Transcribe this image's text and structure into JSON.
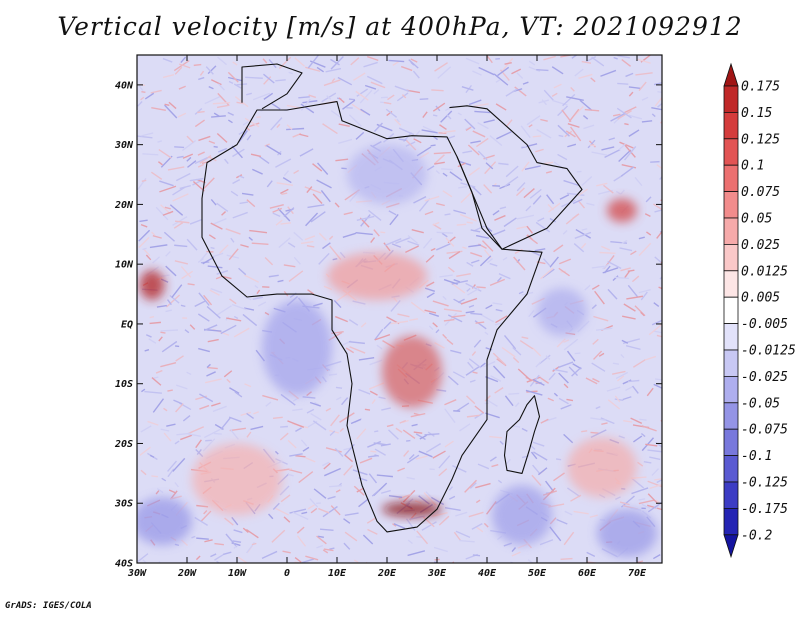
{
  "title": "Vertical velocity [m/s] at 400hPa, VT: 2021092912",
  "credit": "GrADS: IGES/COLA",
  "map": {
    "lon_range": [
      -30,
      75
    ],
    "lat_range": [
      -40,
      45
    ],
    "lat_ticks": [
      {
        "value": 40,
        "label": "40N"
      },
      {
        "value": 30,
        "label": "30N"
      },
      {
        "value": 20,
        "label": "20N"
      },
      {
        "value": 10,
        "label": "10N"
      },
      {
        "value": 0,
        "label": "EQ"
      },
      {
        "value": -10,
        "label": "10S"
      },
      {
        "value": -20,
        "label": "20S"
      },
      {
        "value": -30,
        "label": "30S"
      },
      {
        "value": -40,
        "label": "40S"
      }
    ],
    "lon_ticks": [
      {
        "value": -30,
        "label": "30W"
      },
      {
        "value": -20,
        "label": "20W"
      },
      {
        "value": -10,
        "label": "10W"
      },
      {
        "value": 0,
        "label": "0"
      },
      {
        "value": 10,
        "label": "10E"
      },
      {
        "value": 20,
        "label": "20E"
      },
      {
        "value": 30,
        "label": "30E"
      },
      {
        "value": 40,
        "label": "40E"
      },
      {
        "value": 50,
        "label": "50E"
      },
      {
        "value": 60,
        "label": "60E"
      },
      {
        "value": 70,
        "label": "70E"
      }
    ]
  },
  "colorbar": {
    "levels": [
      "0.175",
      "0.15",
      "0.125",
      "0.1",
      "0.075",
      "0.05",
      "0.025",
      "0.0125",
      "0.005",
      "-0.005",
      "-0.0125",
      "-0.025",
      "-0.05",
      "-0.075",
      "-0.1",
      "-0.125",
      "-0.175",
      "-0.2"
    ],
    "colors": [
      "#a01515",
      "#c02828",
      "#d43c3c",
      "#e25454",
      "#ec7070",
      "#f28c8c",
      "#f6aaaa",
      "#fac8c8",
      "#fde6e6",
      "#ffffff",
      "#e2e2fa",
      "#c8c8f4",
      "#aeaeee",
      "#9494e6",
      "#7878dc",
      "#5a5ad2",
      "#3c3cc4",
      "#2424b4",
      "#1414a0"
    ]
  },
  "continent_outline": [
    [
      -17,
      21
    ],
    [
      -16,
      27
    ],
    [
      -10,
      30
    ],
    [
      -6,
      35.8
    ],
    [
      0,
      35.8
    ],
    [
      10,
      37.2
    ],
    [
      11,
      34
    ],
    [
      20,
      31
    ],
    [
      25,
      31.5
    ],
    [
      32,
      31.3
    ],
    [
      34,
      28
    ],
    [
      37,
      22
    ],
    [
      39,
      16
    ],
    [
      43,
      12.5
    ],
    [
      51,
      12
    ],
    [
      48,
      5
    ],
    [
      42,
      -1
    ],
    [
      40,
      -6
    ],
    [
      40,
      -10
    ],
    [
      40,
      -16
    ],
    [
      35,
      -22
    ],
    [
      33,
      -26
    ],
    [
      30,
      -31
    ],
    [
      26,
      -34
    ],
    [
      20,
      -34.8
    ],
    [
      18,
      -33
    ],
    [
      15,
      -27
    ],
    [
      12,
      -17
    ],
    [
      13,
      -10
    ],
    [
      12,
      -5
    ],
    [
      9,
      -1
    ],
    [
      9,
      4
    ],
    [
      5,
      5
    ],
    [
      -2,
      5
    ],
    [
      -8,
      4.5
    ],
    [
      -13,
      8
    ],
    [
      -17,
      14.5
    ]
  ],
  "madagascar_outline": [
    [
      49.5,
      -12
    ],
    [
      50.5,
      -15.5
    ],
    [
      49.5,
      -18
    ],
    [
      48.5,
      -21
    ],
    [
      47,
      -25
    ],
    [
      44,
      -24.5
    ],
    [
      43.5,
      -22
    ],
    [
      44,
      -18
    ],
    [
      46.5,
      -16
    ],
    [
      48,
      -13.5
    ]
  ],
  "arabia_outline": [
    [
      32.5,
      36.2
    ],
    [
      36,
      36.5
    ],
    [
      40,
      36
    ],
    [
      48,
      30
    ],
    [
      50,
      27
    ],
    [
      56,
      26
    ],
    [
      59,
      22.5
    ],
    [
      52,
      16
    ],
    [
      43,
      12.5
    ],
    [
      40,
      16
    ],
    [
      37,
      22
    ],
    [
      34,
      28
    ]
  ],
  "iberia_outline": [
    [
      -9,
      37
    ],
    [
      -9,
      43
    ],
    [
      -2,
      43.5
    ],
    [
      3,
      42
    ],
    [
      0,
      38.5
    ],
    [
      -5,
      36
    ]
  ],
  "anomalies": [
    {
      "lon": -27,
      "lat": 6.5,
      "rx": 2.5,
      "ry": 2.5,
      "color": "#b42222"
    },
    {
      "lon": 25,
      "lat": -31,
      "rx": 6,
      "ry": 1.2,
      "color": "#8a1010"
    },
    {
      "lon": 67,
      "lat": 19,
      "rx": 3,
      "ry": 2,
      "color": "#d44a4a"
    },
    {
      "lon": 18,
      "lat": 8,
      "rx": 10,
      "ry": 4,
      "color": "#f0a0a0"
    },
    {
      "lon": 25,
      "lat": -8,
      "rx": 6,
      "ry": 6,
      "color": "#d86868"
    },
    {
      "lon": 63,
      "lat": -24,
      "rx": 7,
      "ry": 5,
      "color": "#f3b0b0"
    },
    {
      "lon": -10,
      "lat": -26,
      "rx": 9,
      "ry": 6,
      "color": "#f4b4b4"
    },
    {
      "lon": -25,
      "lat": -33,
      "rx": 6,
      "ry": 4,
      "color": "#9a9ae8"
    },
    {
      "lon": 47,
      "lat": -32,
      "rx": 6,
      "ry": 5,
      "color": "#a2a2ea"
    },
    {
      "lon": 2,
      "lat": -4,
      "rx": 7,
      "ry": 8,
      "color": "#a6a6ec"
    },
    {
      "lon": 20,
      "lat": 25,
      "rx": 8,
      "ry": 5,
      "color": "#b8b8f0"
    },
    {
      "lon": 68,
      "lat": -35,
      "rx": 6,
      "ry": 4,
      "color": "#9c9ce8"
    },
    {
      "lon": 55,
      "lat": 2,
      "rx": 5,
      "ry": 4,
      "color": "#b0b0ee"
    }
  ]
}
